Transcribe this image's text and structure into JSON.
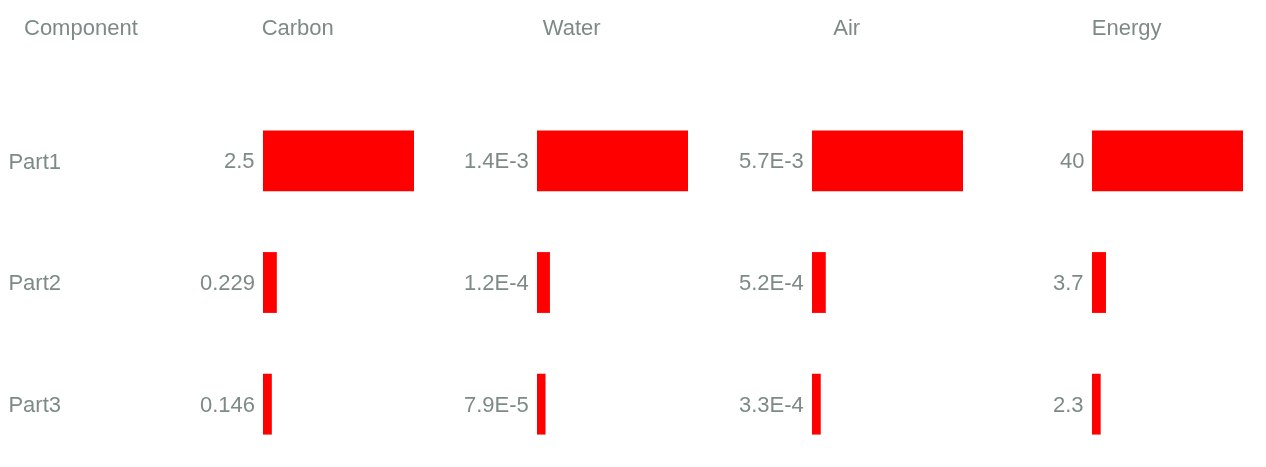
{
  "chart_data": [
    {
      "type": "bar",
      "orientation": "horizontal",
      "title": "Carbon",
      "annotations": [
        "Component"
      ],
      "categories": [
        "Part1",
        "Part2",
        "Part3"
      ],
      "values": [
        2.5,
        0.229,
        0.146
      ],
      "value_labels": [
        "2.5",
        "0.229",
        "0.146"
      ],
      "color": "#ff0000",
      "tick_labels": "y",
      "grid": false,
      "legend": false
    },
    {
      "type": "bar",
      "orientation": "horizontal",
      "title": "Water",
      "categories": [
        null,
        null,
        null
      ],
      "values": [
        0.0014,
        0.00012,
        7.9e-05
      ],
      "value_labels": [
        "1.4E-3",
        "1.2E-4",
        "7.9E-5"
      ],
      "color": "#ff0000",
      "tick_labels": false,
      "grid": false,
      "legend": false
    },
    {
      "type": "bar",
      "orientation": "horizontal",
      "title": "Air",
      "categories": [
        null,
        null,
        null
      ],
      "values": [
        0.0057,
        0.00052,
        0.00033
      ],
      "value_labels": [
        "5.7E-3",
        "5.2E-4",
        "3.3E-4"
      ],
      "color": "#ff0000",
      "tick_labels": false,
      "grid": false,
      "legend": false
    },
    {
      "type": "bar",
      "orientation": "horizontal",
      "title": "Energy",
      "categories": [
        null,
        null,
        null
      ],
      "values": [
        40,
        3.7,
        2.3
      ],
      "value_labels": [
        "40",
        "3.7",
        "2.3"
      ],
      "color": "#ff0000",
      "tick_labels": false,
      "grid": false,
      "legend": false
    }
  ]
}
